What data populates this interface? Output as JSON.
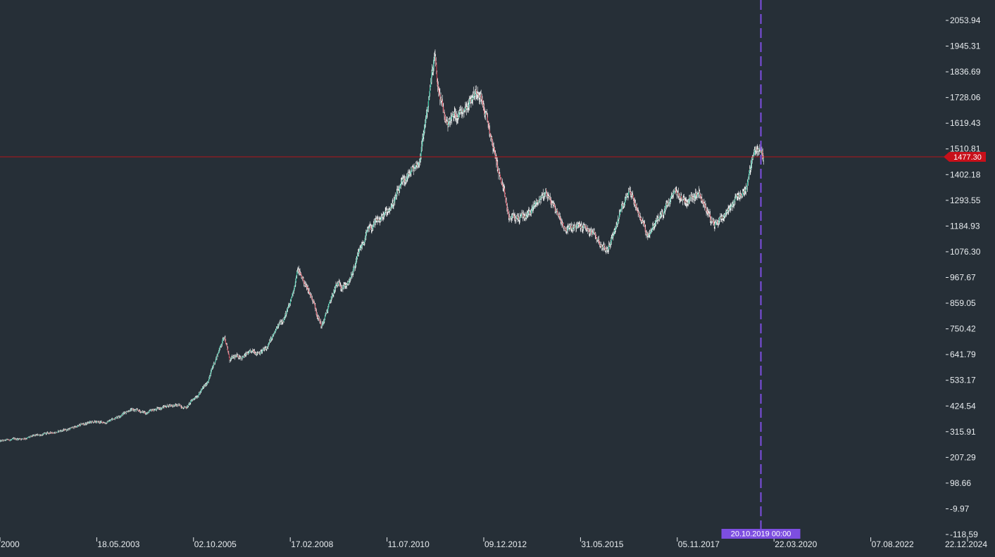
{
  "chart_data": {
    "type": "candlestick",
    "title": "",
    "xlabel": "",
    "ylabel": "",
    "y_ticks": [
      "2053.94",
      "1945.31",
      "1836.69",
      "1728.06",
      "1619.43",
      "1510.81",
      "1402.18",
      "1293.55",
      "1184.93",
      "1076.30",
      "967.67",
      "859.05",
      "750.42",
      "641.79",
      "533.17",
      "424.54",
      "315.91",
      "207.29",
      "98.66",
      "-9.97",
      "-118.59"
    ],
    "x_ticks": [
      "2000",
      "18.05.2003",
      "02.10.2005",
      "17.02.2008",
      "11.07.2010",
      "09.12.2012",
      "31.05.2015",
      "05.11.2017",
      "22.03.2020",
      "07.08.2022",
      "22.12.2024"
    ],
    "ylim": [
      -118.59,
      2053.94
    ],
    "x_range": [
      "2000-09-30",
      "2024-12-22"
    ],
    "current_price": 1477.3,
    "crosshair_date": "20.10.2019 00:00",
    "colors": {
      "background": "#262f37",
      "bull": "#1fbf9a",
      "bear": "#d03a4a",
      "wick": "#ffffff",
      "price_line": "#b4161b",
      "price_tag": "#c8101a",
      "crosshair": "#7d4ee0",
      "axis_text": "#e8ecef"
    },
    "series": [
      {
        "x": [
          "2000-09-30",
          "2001-06-01",
          "2002-01-01",
          "2002-06-01",
          "2003-01-01",
          "2003-06-01",
          "2004-01-01",
          "2004-06-01",
          "2005-01-01",
          "2005-06-01",
          "2005-12-01",
          "2006-05-15",
          "2006-07-01",
          "2007-01-01",
          "2007-06-01",
          "2008-01-01",
          "2008-03-17",
          "2008-08-01",
          "2008-10-20",
          "2009-03-01",
          "2009-07-01",
          "2009-12-01",
          "2010-06-01",
          "2010-12-01",
          "2011-04-01",
          "2011-08-22",
          "2011-09-10",
          "2011-12-01",
          "2012-04-01",
          "2012-10-01",
          "2013-04-15",
          "2013-06-28",
          "2013-12-01",
          "2014-06-01",
          "2014-12-01",
          "2015-06-01",
          "2015-12-15",
          "2016-07-01",
          "2016-12-15",
          "2017-06-01",
          "2017-09-01",
          "2017-12-01",
          "2018-04-01",
          "2018-08-15",
          "2019-03-01",
          "2019-06-01",
          "2019-09-01",
          "2019-10-20",
          "2019-11-15"
        ],
        "y": [
          275,
          290,
          310,
          325,
          355,
          355,
          410,
          395,
          430,
          420,
          515,
          725,
          620,
          645,
          665,
          845,
          1000,
          875,
          760,
          930,
          945,
          1150,
          1235,
          1380,
          1460,
          1900,
          1780,
          1620,
          1670,
          1770,
          1380,
          1215,
          1225,
          1330,
          1175,
          1180,
          1080,
          1350,
          1150,
          1255,
          1320,
          1290,
          1340,
          1180,
          1300,
          1340,
          1520,
          1495,
          1470
        ]
      }
    ]
  }
}
